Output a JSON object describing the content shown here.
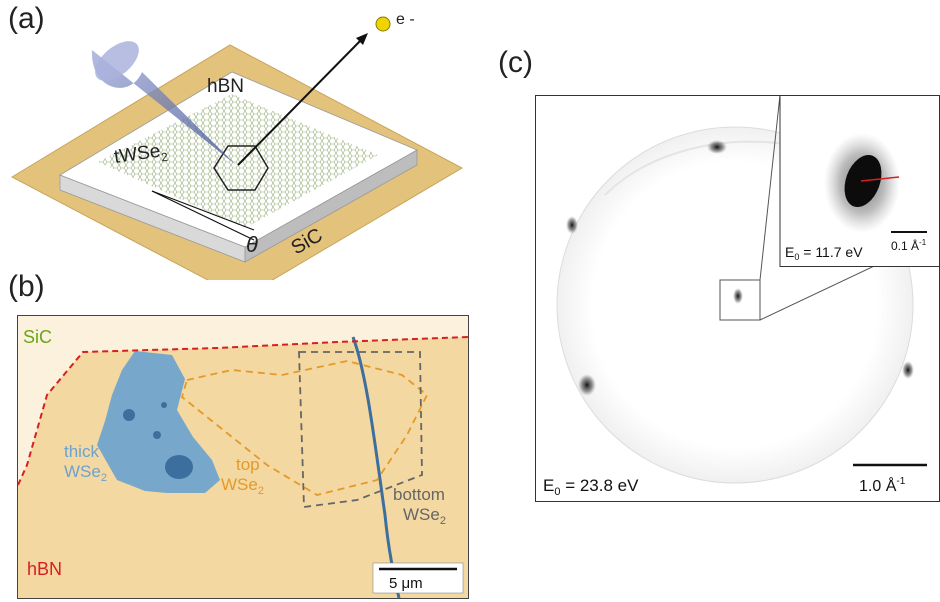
{
  "panels": {
    "a": {
      "label": "(a)",
      "electron": "e -",
      "hbn": "hBN",
      "twse2": "tWSe",
      "twse2_sub": "2",
      "theta": "θ",
      "sic": "SiC"
    },
    "b": {
      "label": "(b)",
      "sic": "SiC",
      "thick_line1": "thick",
      "thick_line2": "WSe",
      "thick_sub": "2",
      "top_line1": "top",
      "top_line2": "WSe",
      "top_sub": "2",
      "bottom_line1": "bottom",
      "bottom_line2": "WSe",
      "bottom_sub": "2",
      "hbn": "hBN",
      "scale": "5 μm"
    },
    "c": {
      "label": "(c)",
      "energy_main": "E",
      "energy_main_sub": "0",
      "energy_main_val": " = 23.8 eV",
      "scale_main": "1.0 Å",
      "scale_main_sup": "-1",
      "energy_inset": "E",
      "energy_inset_sub": "0",
      "energy_inset_val": " = 11.7 eV",
      "scale_inset": "0.1 Å",
      "scale_inset_sup": "-1"
    }
  },
  "colors": {
    "substrate": "#e3c27c",
    "flake_blue": "#6aa2d0",
    "top_outline": "#e39a2a",
    "bottom_outline": "#666666",
    "hbn_edge": "#d62020",
    "sic_text": "#6aa51b",
    "inset_line": "#d62020"
  }
}
